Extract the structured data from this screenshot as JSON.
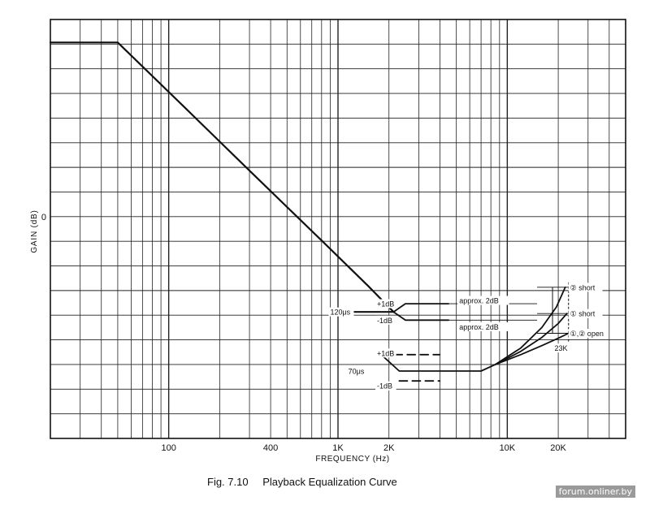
{
  "chart_data": {
    "type": "line",
    "title": "Playback Equalization Curve",
    "figure_number": "Fig. 7.10",
    "xlabel": "FREQUENCY (Hz)",
    "ylabel": "GAIN (dB)",
    "x_scale": "log",
    "xlim": [
      20,
      50000
    ],
    "ylim": [
      -27,
      24
    ],
    "grid": true,
    "x_tick_labels": [
      {
        "value": 100,
        "label": "100"
      },
      {
        "value": 400,
        "label": "400"
      },
      {
        "value": 1000,
        "label": "1K"
      },
      {
        "value": 2000,
        "label": "2K"
      },
      {
        "value": 10000,
        "label": "10K"
      },
      {
        "value": 20000,
        "label": "20K"
      }
    ],
    "y_tick_labels": [
      {
        "value": 0,
        "label": "0"
      }
    ],
    "series": [
      {
        "style": "solid",
        "x": [
          20,
          50,
          120,
          300,
          800,
          1500,
          2130
        ],
        "y": [
          21.2,
          21.2,
          13.6,
          5.6,
          -2.9,
          -8.4,
          -11.6
        ]
      },
      {
        "style": "solid",
        "x": [
          1000,
          2130,
          2500,
          4500
        ],
        "y": [
          -11.6,
          -11.6,
          -10.6,
          -10.6
        ]
      },
      {
        "style": "solid",
        "x": [
          1000,
          2130,
          2500,
          4500
        ],
        "y": [
          -11.6,
          -11.6,
          -12.6,
          -12.6
        ]
      },
      {
        "style": "solid",
        "x": [
          1800,
          2300,
          5000,
          7000,
          8500
        ],
        "y": [
          -16.8,
          -18.8,
          -18.8,
          -18.8,
          -18.0
        ]
      },
      {
        "style": "dashed",
        "x": [
          1800,
          4000
        ],
        "y": [
          -16.8,
          -16.8
        ]
      },
      {
        "style": "dashed",
        "x": [
          2300,
          4000
        ],
        "y": [
          -20.0,
          -20.0
        ]
      },
      {
        "name": "② short",
        "style": "solid",
        "x": [
          8500,
          12000,
          16000,
          19500,
          22000
        ],
        "y": [
          -18.0,
          -16.0,
          -13.5,
          -11.0,
          -8.6
        ]
      },
      {
        "name": "① short",
        "style": "solid",
        "x": [
          8500,
          12000,
          16000,
          20000,
          22500
        ],
        "y": [
          -18.0,
          -16.4,
          -14.7,
          -13.0,
          -11.8
        ]
      },
      {
        "name": "①,② open",
        "style": "solid",
        "x": [
          8500,
          12000,
          16000,
          20000,
          23000
        ],
        "y": [
          -18.0,
          -16.8,
          -15.7,
          -14.8,
          -14.2
        ]
      }
    ],
    "annotations": [
      {
        "text": "+1dB",
        "x": 1700,
        "y": -10.6
      },
      {
        "text": "-1dB",
        "x": 1700,
        "y": -12.6
      },
      {
        "text": "120μs",
        "x": 900,
        "y": -11.6
      },
      {
        "text": "+1dB",
        "x": 1700,
        "y": -16.6
      },
      {
        "text": "70μs",
        "x": 1150,
        "y": -18.8
      },
      {
        "text": "-1dB",
        "x": 1700,
        "y": -20.6
      },
      {
        "text": "approx. 2dB",
        "x": 5200,
        "y": -10.2
      },
      {
        "text": "approx. 2dB",
        "x": 5200,
        "y": -13.4
      },
      {
        "text": "② short",
        "x": 23500,
        "y": -8.6
      },
      {
        "text": "① short",
        "x": 23500,
        "y": -11.8
      },
      {
        "text": "①,② open",
        "x": 23500,
        "y": -14.2
      },
      {
        "text": "23K",
        "x": 19000,
        "y": -16.0
      }
    ]
  },
  "watermark": "forum.onliner.by"
}
